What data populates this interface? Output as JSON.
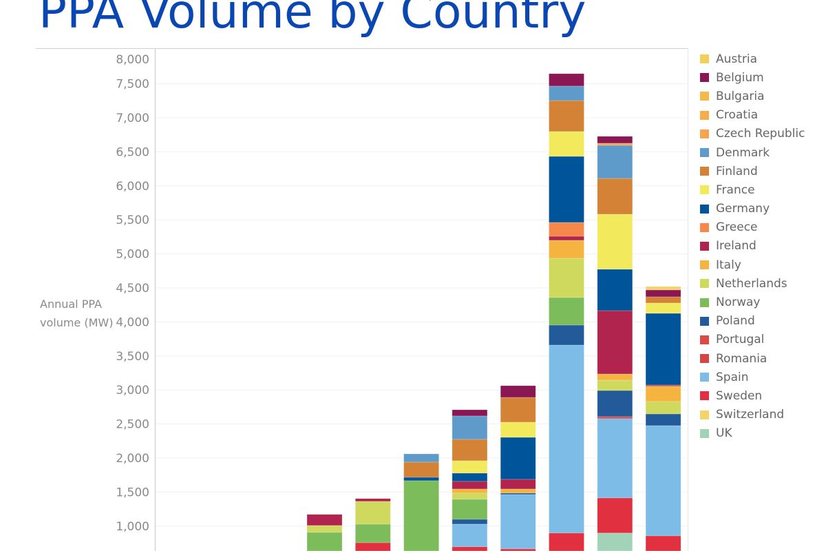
{
  "chart_data": {
    "type": "bar",
    "stacked": true,
    "title": "PPA Volume by Country",
    "ylabel": "Annual PPA volume (MW)",
    "xlabel": "",
    "ylim": [
      0,
      8000
    ],
    "yticks": [
      1000,
      1500,
      2000,
      2500,
      3000,
      3500,
      4000,
      4500,
      5000,
      5500,
      6000,
      6500,
      7000,
      7500,
      8000
    ],
    "ytick_labels": [
      "1,000",
      "1,500",
      "2,000",
      "2,500",
      "3,000",
      "3,500",
      "4,000",
      "4,500",
      "5,000",
      "5,500",
      "6,000",
      "6,500",
      "7,000",
      "7,500",
      "8,000"
    ],
    "grid": true,
    "legend_position": "right",
    "legend": [
      {
        "name": "Austria",
        "color": "#f2cf5b"
      },
      {
        "name": "Belgium",
        "color": "#8a1653"
      },
      {
        "name": "Bulgaria",
        "color": "#f5b84a"
      },
      {
        "name": "Croatia",
        "color": "#f6ad4b"
      },
      {
        "name": "Czech Republic",
        "color": "#f7a54c"
      },
      {
        "name": "Denmark",
        "color": "#5e9bcb"
      },
      {
        "name": "Finland",
        "color": "#d48236"
      },
      {
        "name": "France",
        "color": "#f2e95c"
      },
      {
        "name": "Germany",
        "color": "#00549a"
      },
      {
        "name": "Greece",
        "color": "#f5884a"
      },
      {
        "name": "Ireland",
        "color": "#b0244e"
      },
      {
        "name": "Italy",
        "color": "#f5b43f"
      },
      {
        "name": "Netherlands",
        "color": "#cfd95d"
      },
      {
        "name": "Norway",
        "color": "#7dbc5b"
      },
      {
        "name": "Poland",
        "color": "#235a99"
      },
      {
        "name": "Portugal",
        "color": "#db4a46"
      },
      {
        "name": "Romania",
        "color": "#d64545"
      },
      {
        "name": "Spain",
        "color": "#7cbce6"
      },
      {
        "name": "Sweden",
        "color": "#e1303f"
      },
      {
        "name": "Switzerland",
        "color": "#f3d36a"
      },
      {
        "name": "UK",
        "color": "#a2d3b8"
      }
    ],
    "bars": [
      [
        {
          "c": "Norway",
          "v": 908
        },
        {
          "c": "Netherlands",
          "v": 101
        },
        {
          "c": "Ireland",
          "v": 162
        }
      ],
      [
        {
          "c": "Sweden",
          "v": 756
        },
        {
          "c": "Norway",
          "v": 273
        },
        {
          "c": "Netherlands",
          "v": 334
        },
        {
          "c": "Ireland",
          "v": 41
        }
      ],
      [
        {
          "c": "Norway",
          "v": 1667
        },
        {
          "c": "Germany",
          "v": 50
        },
        {
          "c": "Finland",
          "v": 223
        },
        {
          "c": "Denmark",
          "v": 121
        }
      ],
      [
        {
          "c": "Sweden",
          "v": 696
        },
        {
          "c": "Spain",
          "v": 333
        },
        {
          "c": "Poland",
          "v": 71
        },
        {
          "c": "Norway",
          "v": 294
        },
        {
          "c": "Netherlands",
          "v": 91
        },
        {
          "c": "Italy",
          "v": 60
        },
        {
          "c": "Ireland",
          "v": 112
        },
        {
          "c": "Germany",
          "v": 121
        },
        {
          "c": "France",
          "v": 182
        },
        {
          "c": "Finland",
          "v": 314
        },
        {
          "c": "Denmark",
          "v": 344
        },
        {
          "c": "Belgium",
          "v": 91
        }
      ],
      [
        {
          "c": "Sweden",
          "v": 665
        },
        {
          "c": "Spain",
          "v": 799
        },
        {
          "c": "Poland",
          "v": 21
        },
        {
          "c": "Italy",
          "v": 60
        },
        {
          "c": "Ireland",
          "v": 142
        },
        {
          "c": "Germany",
          "v": 617
        },
        {
          "c": "France",
          "v": 223
        },
        {
          "c": "Finland",
          "v": 364
        },
        {
          "c": "Belgium",
          "v": 172
        }
      ],
      [
        {
          "c": "Sweden",
          "v": 898
        },
        {
          "c": "Spain",
          "v": 2762
        },
        {
          "c": "Poland",
          "v": 294
        },
        {
          "c": "Norway",
          "v": 405
        },
        {
          "c": "Netherlands",
          "v": 576
        },
        {
          "c": "Italy",
          "v": 264
        },
        {
          "c": "Ireland",
          "v": 60
        },
        {
          "c": "Greece",
          "v": 203
        },
        {
          "c": "Germany",
          "v": 971
        },
        {
          "c": "France",
          "v": 365
        },
        {
          "c": "Finland",
          "v": 455
        },
        {
          "c": "Denmark",
          "v": 213
        },
        {
          "c": "Belgium",
          "v": 182
        }
      ],
      [
        {
          "c": "UK",
          "v": 898
        },
        {
          "c": "Sweden",
          "v": 516
        },
        {
          "c": "Spain",
          "v": 1164
        },
        {
          "c": "Portugal",
          "v": 30
        },
        {
          "c": "Poland",
          "v": 384
        },
        {
          "c": "Netherlands",
          "v": 152
        },
        {
          "c": "Italy",
          "v": 91
        },
        {
          "c": "Ireland",
          "v": 931
        },
        {
          "c": "Germany",
          "v": 608
        },
        {
          "c": "France",
          "v": 809
        },
        {
          "c": "Finland",
          "v": 526
        },
        {
          "c": "Denmark",
          "v": 486
        },
        {
          "c": "Czech Republic",
          "v": 31
        },
        {
          "c": "Belgium",
          "v": 101
        }
      ],
      [
        {
          "c": "Sweden",
          "v": 857
        },
        {
          "c": "Spain",
          "v": 1619
        },
        {
          "c": "Poland",
          "v": 172
        },
        {
          "c": "Netherlands",
          "v": 183
        },
        {
          "c": "Italy",
          "v": 222
        },
        {
          "c": "Romania",
          "v": 20
        },
        {
          "c": "Germany",
          "v": 1053
        },
        {
          "c": "France",
          "v": 152
        },
        {
          "c": "Finland",
          "v": 91
        },
        {
          "c": "Belgium",
          "v": 101
        },
        {
          "c": "Switzerland",
          "v": 51
        }
      ]
    ]
  }
}
